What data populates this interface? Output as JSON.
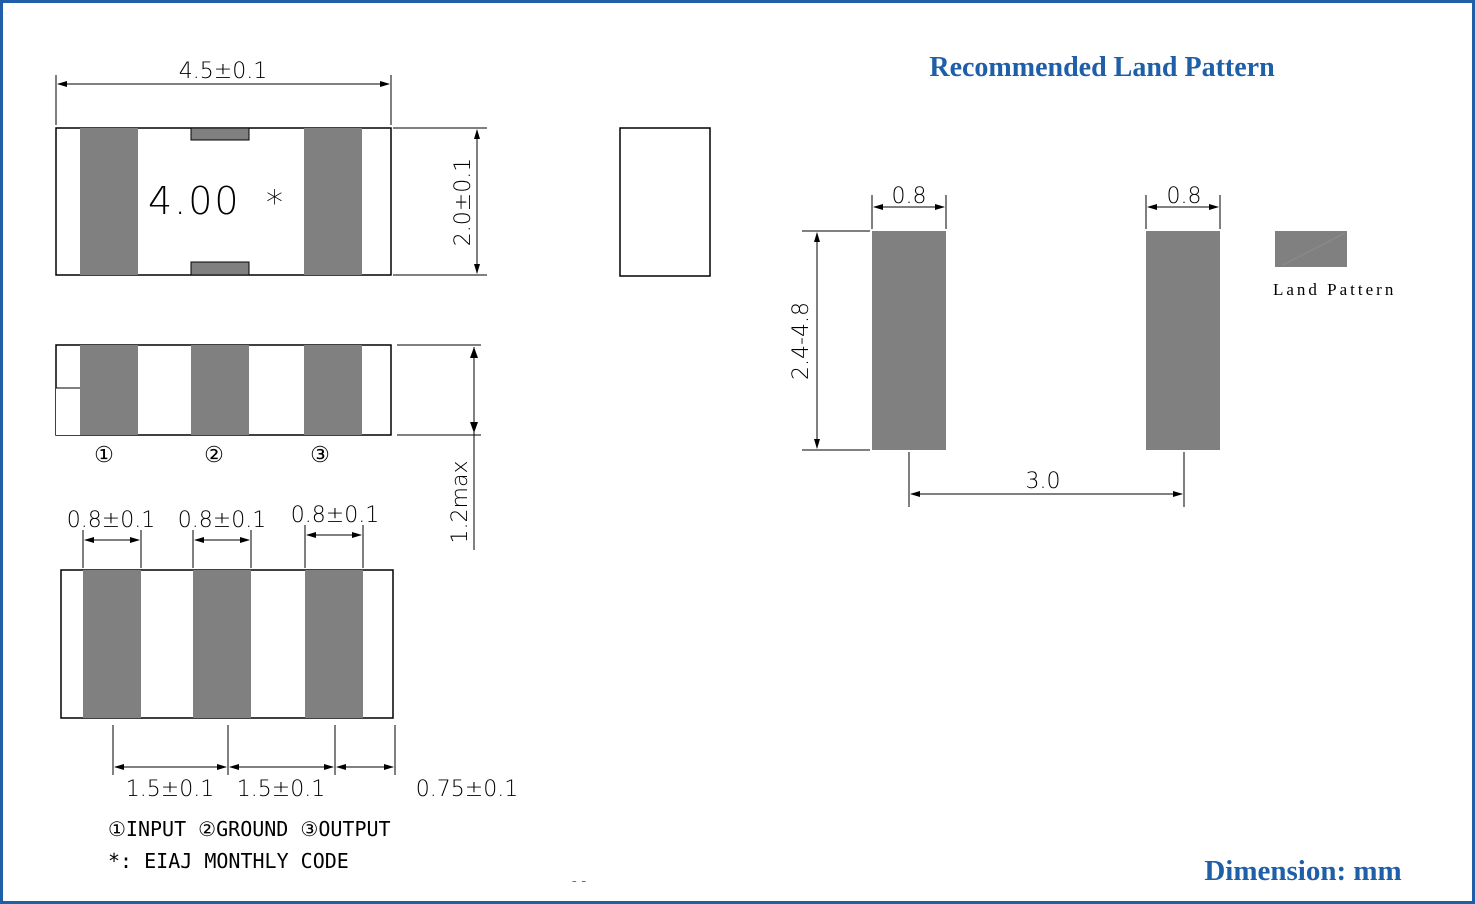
{
  "drawing": {
    "top_view": {
      "length_dim": "4.5±0.1",
      "width_dim": "2.0±0.1",
      "marking_text": "4.00",
      "marking_symbol": "*"
    },
    "side_view": {
      "height_dim": "1.2max",
      "pin_labels": [
        "①",
        "②",
        "③"
      ]
    },
    "bottom_view": {
      "electrode_width_dims": [
        "0.8±0.1",
        "0.8±0.1",
        "0.8±0.1"
      ],
      "pitch_dims": [
        "1.5±0.1",
        "1.5±0.1"
      ],
      "edge_dim": "0.75±0.1"
    },
    "notes": {
      "pins": "①INPUT ②GROUND ③OUTPUT",
      "code": "*: EIAJ MONTHLY CODE"
    },
    "page_mark": "- -"
  },
  "land_pattern": {
    "title": "Recommended Land Pattern",
    "pad_width_left": "0.8",
    "pad_width_right": "0.8",
    "pad_length": "2.4-4.8",
    "pad_spacing": "3.0",
    "legend_label": "Land Pattern"
  },
  "footer": {
    "units": "Dimension: mm"
  },
  "colors": {
    "frame": "#1f5fa8",
    "electrode": "#808080",
    "title": "#1f5fa8"
  }
}
